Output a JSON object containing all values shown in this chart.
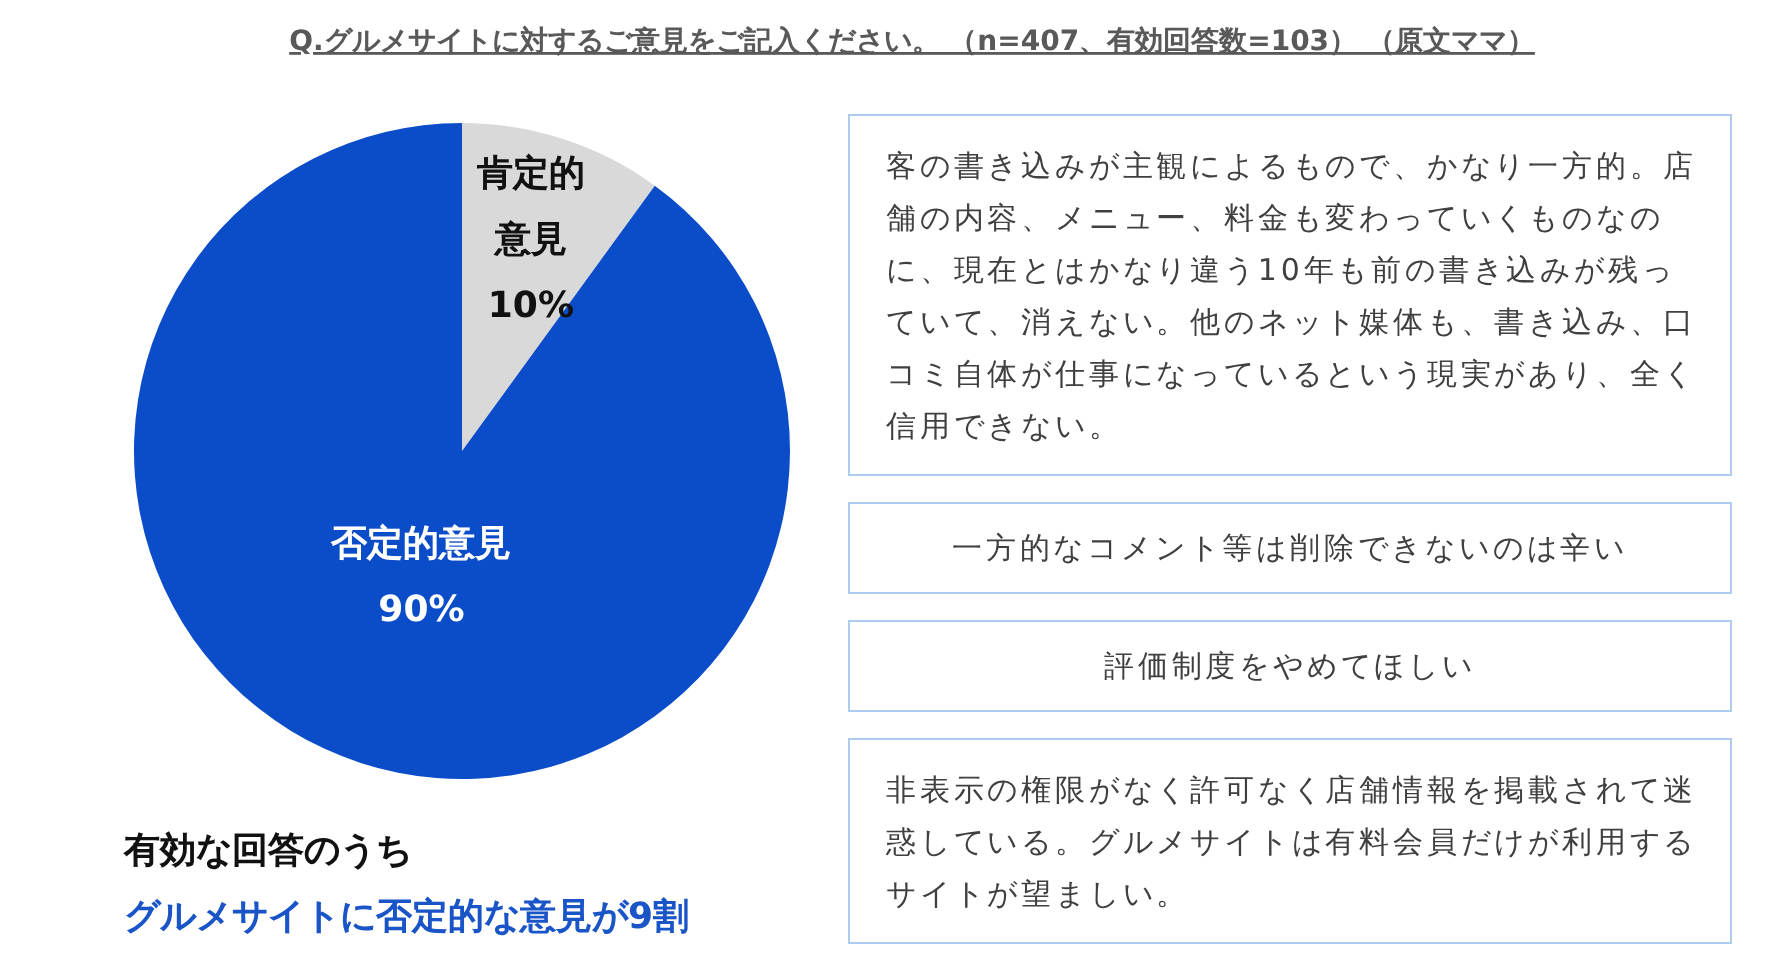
{
  "chart_data": [
    {
      "type": "pie",
      "title": "Q.グルメサイトに対するご意見をご記入ください。 （n=407、有効回答数=103） （原文ママ）",
      "categories": [
        "肯定的意見",
        "否定的意見"
      ],
      "values": [
        10,
        90
      ],
      "colors": [
        "#d9d9d9",
        "#0b4dc8"
      ],
      "value_labels": [
        "10%",
        "90%"
      ],
      "annotations": [
        "有効な回答のうち",
        "グルメサイトに否定的な意見が9割"
      ]
    },
    {
      "type": "other",
      "annotations": [
        "客の書き込みが主観によるもので、かなり一方的。店舗の内容、メニュー、料金も変わっていくものなのに、現在とはかなり違う10年も前の書き込みが残っていて、消えない。他のネット媒体も、書き込み、口コミ自体が仕事になっているという現実があり、全く信用できない。",
        "一方的なコメント等は削除できないのは辛い",
        "評価制度をやめてほしい",
        "非表示の権限がなく許可なく店舗情報を掲載されて迷惑している。グルメサイトは有料会員だけが利用するサイトが望ましい。"
      ]
    }
  ]
}
